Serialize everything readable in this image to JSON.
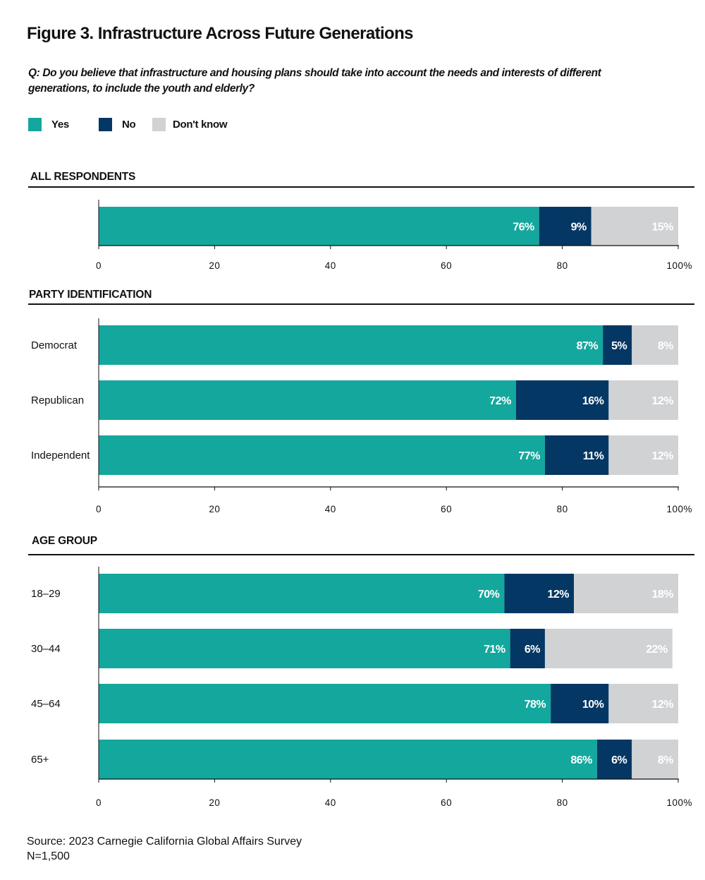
{
  "title": "Figure 3. Infrastructure Across Future Generations",
  "question": "Q: Do you believe that infrastructure and housing plans should take into account the needs and interests of different generations, to include the youth and elderly?",
  "legend": [
    {
      "label": "Yes",
      "color": "#14a79d"
    },
    {
      "label": "No",
      "color": "#043763"
    },
    {
      "label": "Don't know",
      "color": "#d1d2d4"
    }
  ],
  "source": "Source: 2023 Carnegie California Global Affairs Survey",
  "sample": "N=1,500",
  "chart_data": {
    "type": "bar",
    "orientation": "horizontal",
    "stacked": true,
    "xlim": [
      0,
      100
    ],
    "xticks": [
      "0",
      "20",
      "40",
      "60",
      "80",
      "100%"
    ],
    "series_names": [
      "Yes",
      "No",
      "Don't know"
    ],
    "panels": [
      {
        "title": "ALL RESPONDENTS",
        "rows": [
          {
            "label": "",
            "values": [
              76,
              9,
              15
            ],
            "labels": [
              "76%",
              "9%",
              "15%"
            ]
          }
        ]
      },
      {
        "title": "PARTY IDENTIFICATION",
        "rows": [
          {
            "label": "Democrat",
            "values": [
              87,
              5,
              8
            ],
            "labels": [
              "87%",
              "5%",
              "8%"
            ]
          },
          {
            "label": "Republican",
            "values": [
              72,
              16,
              12
            ],
            "labels": [
              "72%",
              "16%",
              "12%"
            ]
          },
          {
            "label": "Independent",
            "values": [
              77,
              11,
              12
            ],
            "labels": [
              "77%",
              "11%",
              "12%"
            ]
          }
        ]
      },
      {
        "title": "AGE GROUP",
        "rows": [
          {
            "label": "18–29",
            "values": [
              70,
              12,
              18
            ],
            "labels": [
              "70%",
              "12%",
              "18%"
            ]
          },
          {
            "label": "30–44",
            "values": [
              71,
              6,
              22
            ],
            "labels": [
              "71%",
              "6%",
              "22%"
            ]
          },
          {
            "label": "45–64",
            "values": [
              78,
              10,
              12
            ],
            "labels": [
              "78%",
              "10%",
              "12%"
            ]
          },
          {
            "label": "65+",
            "values": [
              86,
              6,
              8
            ],
            "labels": [
              "86%",
              "6%",
              "8%"
            ]
          }
        ]
      }
    ]
  }
}
